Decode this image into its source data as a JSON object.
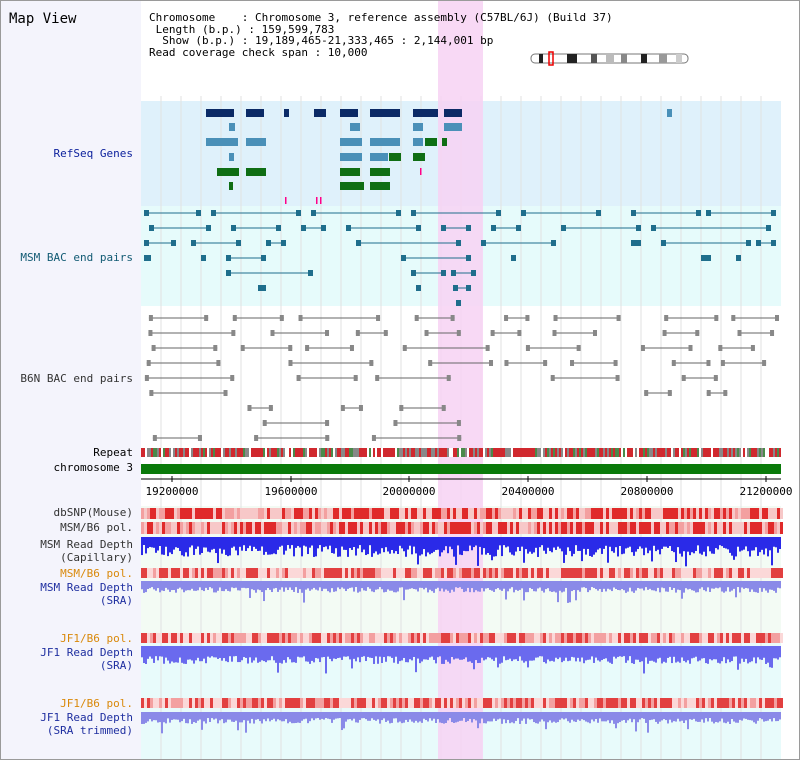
{
  "title": "Map View",
  "info": {
    "chromosome_line": "Chromosome    : Chromosome 3, reference assembly (C57BL/6J) (Build 37)",
    "length_line": " Length (b.p.) : 159,599,783",
    "show_line": "  Show (b.p.) : 19,189,465-21,333,465 : 2,144,001 bp",
    "coverage_line": "Read coverage check span : 10,000"
  },
  "tracks": {
    "refseq": "RefSeq Genes",
    "msm_bac": "MSM BAC end pairs",
    "b6n_bac": "B6N BAC end pairs",
    "repeat": "Repeat",
    "chromosome": "chromosome 3",
    "dbsnp": "dbSNP(Mouse)",
    "msm_b6_pol": "MSM/B6 pol.",
    "msm_depth_cap_1": "MSM Read Depth",
    "msm_depth_cap_2": "(Capillary)",
    "msm_b6_pol_2": "MSM/B6 pol.",
    "msm_depth_sra_1": "MSM Read Depth",
    "msm_depth_sra_2": "(SRA)",
    "jf1_b6_pol": "JF1/B6 pol.",
    "jf1_depth_sra_1": "JF1 Read Depth",
    "jf1_depth_sra_2": "(SRA)",
    "jf1_b6_pol_2": "JF1/B6 pol.",
    "jf1_depth_trim_1": "JF1 Read Depth",
    "jf1_depth_trim_2": "(SRA trimmed)"
  },
  "axis": {
    "ticks": [
      "19200000",
      "19600000",
      "20000000",
      "20400000",
      "20800000",
      "21200000"
    ]
  },
  "colors": {
    "highlight": "#f7d2f3",
    "refseq_bg": "#dff1fb",
    "msm_bg": "#e6fbfb",
    "chromosome_bar": "#0a7a0a",
    "gene_dark": "#0b2a66",
    "gene_mid": "#4a90b8",
    "gene_green": "#0f6e14"
  }
}
